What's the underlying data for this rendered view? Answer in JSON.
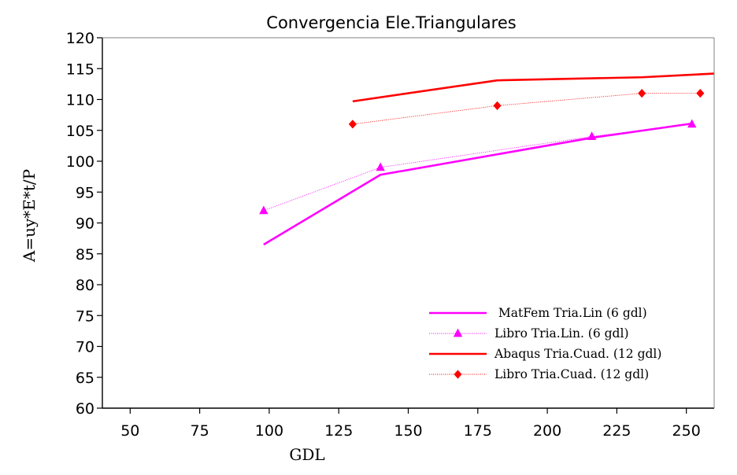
{
  "chart_data": {
    "type": "line",
    "title": "Convergencia Ele.Triangulares",
    "xlabel": "GDL",
    "ylabel": "A=uy*E*t/P",
    "xlim": [
      40,
      260
    ],
    "ylim": [
      60,
      120
    ],
    "xticks": [
      50,
      75,
      100,
      125,
      150,
      175,
      200,
      225,
      250
    ],
    "yticks": [
      60,
      65,
      70,
      75,
      80,
      85,
      90,
      95,
      100,
      105,
      110,
      115,
      120
    ],
    "grid": false,
    "legend_position": "lower-right",
    "series": [
      {
        "name": " MatFem Tria.Lin (6 gdl)",
        "color": "#ff00ff",
        "style": "solid",
        "marker": "none",
        "x": [
          98,
          140,
          216,
          252
        ],
        "y": [
          86.5,
          97.8,
          103.8,
          106.1
        ]
      },
      {
        "name": "Libro Tria.Lin. (6 gdl)",
        "color": "#ff00ff",
        "style": "dotted",
        "marker": "triangle",
        "x": [
          98,
          140,
          216,
          252
        ],
        "y": [
          92,
          99,
          104,
          106
        ]
      },
      {
        "name": "Abaqus Tria.Cuad. (12 gdl)",
        "color": "#ff0000",
        "style": "solid",
        "marker": "none",
        "x": [
          130,
          182,
          234,
          260
        ],
        "y": [
          109.7,
          113.1,
          113.6,
          114.2
        ]
      },
      {
        "name": "Libro Tria.Cuad. (12 gdl)",
        "color": "#ff0000",
        "style": "dotted",
        "marker": "diamond",
        "x": [
          130,
          182,
          234,
          255
        ],
        "y": [
          106,
          109,
          111,
          111
        ]
      }
    ]
  }
}
